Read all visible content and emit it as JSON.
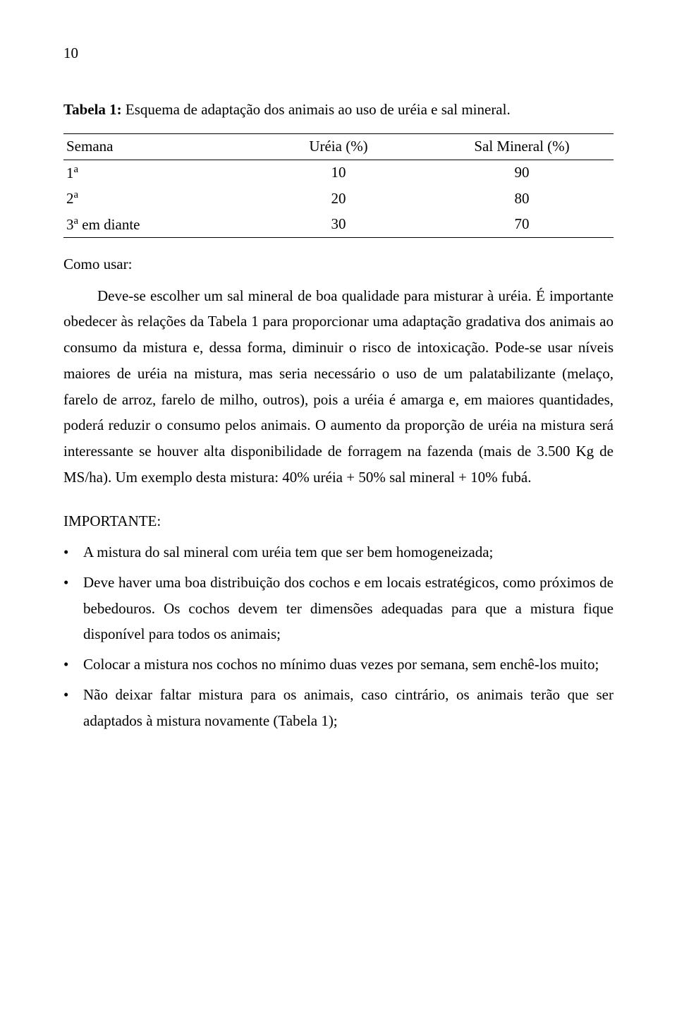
{
  "page_number": "10",
  "table": {
    "caption_prefix": "Tabela 1:",
    "caption_text": " Esquema de adaptação dos animais ao uso de uréia e sal mineral.",
    "headers": [
      "Semana",
      "Uréia (%)",
      "Sal Mineral (%)"
    ],
    "rows": [
      {
        "c0_html": "1<span class=\"sup\">a</span>",
        "c1": "10",
        "c2": "90"
      },
      {
        "c0_html": "2<span class=\"sup\">a</span>",
        "c1": "20",
        "c2": "80"
      },
      {
        "c0_html": "3<span class=\"sup\">a</span> em diante",
        "c1": "30",
        "c2": "70"
      }
    ]
  },
  "como_usar_label": "Como usar:",
  "body_paragraph": "Deve-se escolher um sal mineral de boa qualidade para misturar à uréia. É importante obedecer às relações da Tabela 1 para proporcionar uma adaptação gradativa dos animais ao consumo da mistura e, dessa forma, diminuir o risco de intoxicação. Pode-se usar níveis maiores de uréia na mistura, mas seria necessário o uso de um palatabilizante (melaço, farelo de arroz, farelo de milho, outros), pois a uréia é amarga e, em maiores quantidades, poderá reduzir o consumo pelos animais. O aumento da proporção de uréia na mistura será interessante se houver alta disponibilidade de forragem na fazenda (mais de 3.500 Kg de MS/ha). Um exemplo desta mistura: 40% uréia + 50% sal mineral + 10% fubá.",
  "importante_label": "IMPORTANTE:",
  "bullets": [
    "A mistura do sal mineral com uréia tem que ser bem homogeneizada;",
    "Deve haver uma boa distribuição dos cochos e em locais estratégicos, como próximos de bebedouros. Os cochos devem ter dimensões adequadas para que a mistura fique disponível para todos os animais;",
    "Colocar a mistura nos cochos no mínimo duas vezes por semana, sem enchê-los muito;",
    "Não deixar faltar mistura para os animais, caso cintrário, os animais terão que ser adaptados à mistura novamente (Tabela 1);"
  ]
}
